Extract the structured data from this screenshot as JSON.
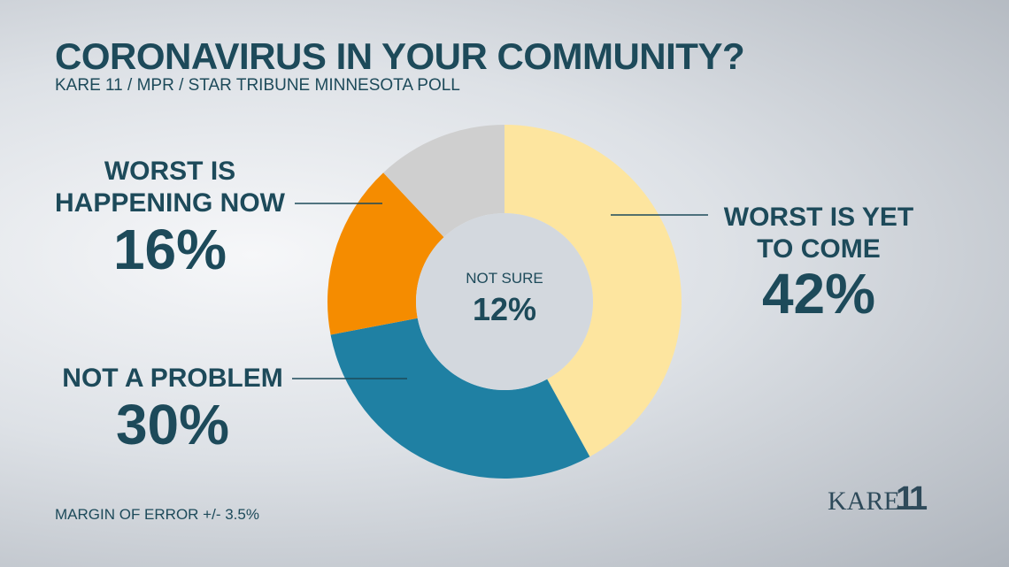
{
  "chart_data": {
    "type": "donut",
    "title": "CORONAVIRUS IN YOUR COMMUNITY?",
    "subtitle": "KARE 11 / MPR / STAR TRIBUNE MINNESOTA POLL",
    "categories": [
      "WORST IS YET TO COME",
      "NOT A PROBLEM",
      "WORST IS HAPPENING NOW",
      "NOT SURE"
    ],
    "values": [
      42,
      30,
      16,
      12
    ],
    "value_labels": [
      "42%",
      "30%",
      "16%",
      "12%"
    ],
    "colors": [
      "#fde59f",
      "#1f80a3",
      "#f58c00",
      "#cfcfcf"
    ],
    "note": "MARGIN OF ERROR +/- 3.5%"
  },
  "logo": {
    "text": "KARE",
    "number": "11"
  }
}
